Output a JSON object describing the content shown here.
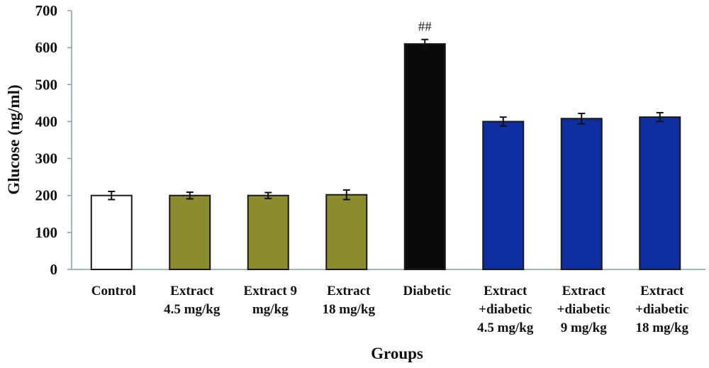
{
  "chart_data": {
    "type": "bar",
    "title": "",
    "xlabel": "Groups",
    "ylabel": "Glucose (ng/ml)",
    "ylim": [
      0,
      700
    ],
    "yticks": [
      0,
      100,
      200,
      300,
      400,
      500,
      600,
      700
    ],
    "grid": false,
    "categories": [
      [
        "Control"
      ],
      [
        "Extract",
        "4.5 mg/kg"
      ],
      [
        "Extract 9",
        "mg/kg"
      ],
      [
        "Extract",
        "18 mg/kg"
      ],
      [
        "Diabetic"
      ],
      [
        "Extract",
        "+diabetic",
        "4.5 mg/kg"
      ],
      [
        "Extract",
        "+diabetic",
        "9 mg/kg"
      ],
      [
        "Extract",
        "+diabetic",
        "18 mg/kg"
      ]
    ],
    "values": [
      200,
      200,
      200,
      202,
      610,
      400,
      408,
      412
    ],
    "errors": [
      11,
      9,
      8,
      13,
      12,
      12,
      14,
      12
    ],
    "colors": [
      "#ffffff",
      "#8a8c2e",
      "#8a8c2e",
      "#8a8c2e",
      "#0a0a0a",
      "#0f2fa0",
      "#0f2fa0",
      "#0f2fa0"
    ],
    "annotations": [
      {
        "category_index": 4,
        "text": "##"
      }
    ]
  }
}
